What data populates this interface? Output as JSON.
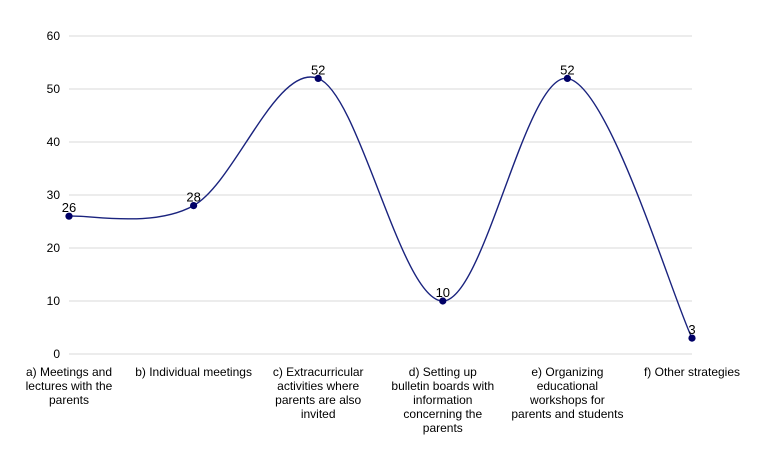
{
  "chart_data": {
    "type": "line",
    "title": "",
    "xlabel": "",
    "ylabel": "",
    "ylim": [
      0,
      60
    ],
    "yticks": [
      0,
      10,
      20,
      30,
      40,
      50,
      60
    ],
    "grid": true,
    "smooth": true,
    "categories": [
      [
        "a) Meetings and",
        "lectures with the",
        "parents"
      ],
      [
        "b) Individual meetings"
      ],
      [
        "c) Extracurricular",
        "activities where",
        "parents are also",
        "invited"
      ],
      [
        "d) Setting up",
        "bulletin boards with",
        "information",
        "concerning the",
        "parents"
      ],
      [
        "e) Organizing",
        "educational",
        "workshops for",
        "parents and students"
      ],
      [
        "f) Other strategies"
      ]
    ],
    "values": [
      26,
      28,
      52,
      10,
      52,
      3
    ],
    "line_color": "#1a237e",
    "marker_color": "#000066",
    "grid_color": "#d9d9d9"
  }
}
